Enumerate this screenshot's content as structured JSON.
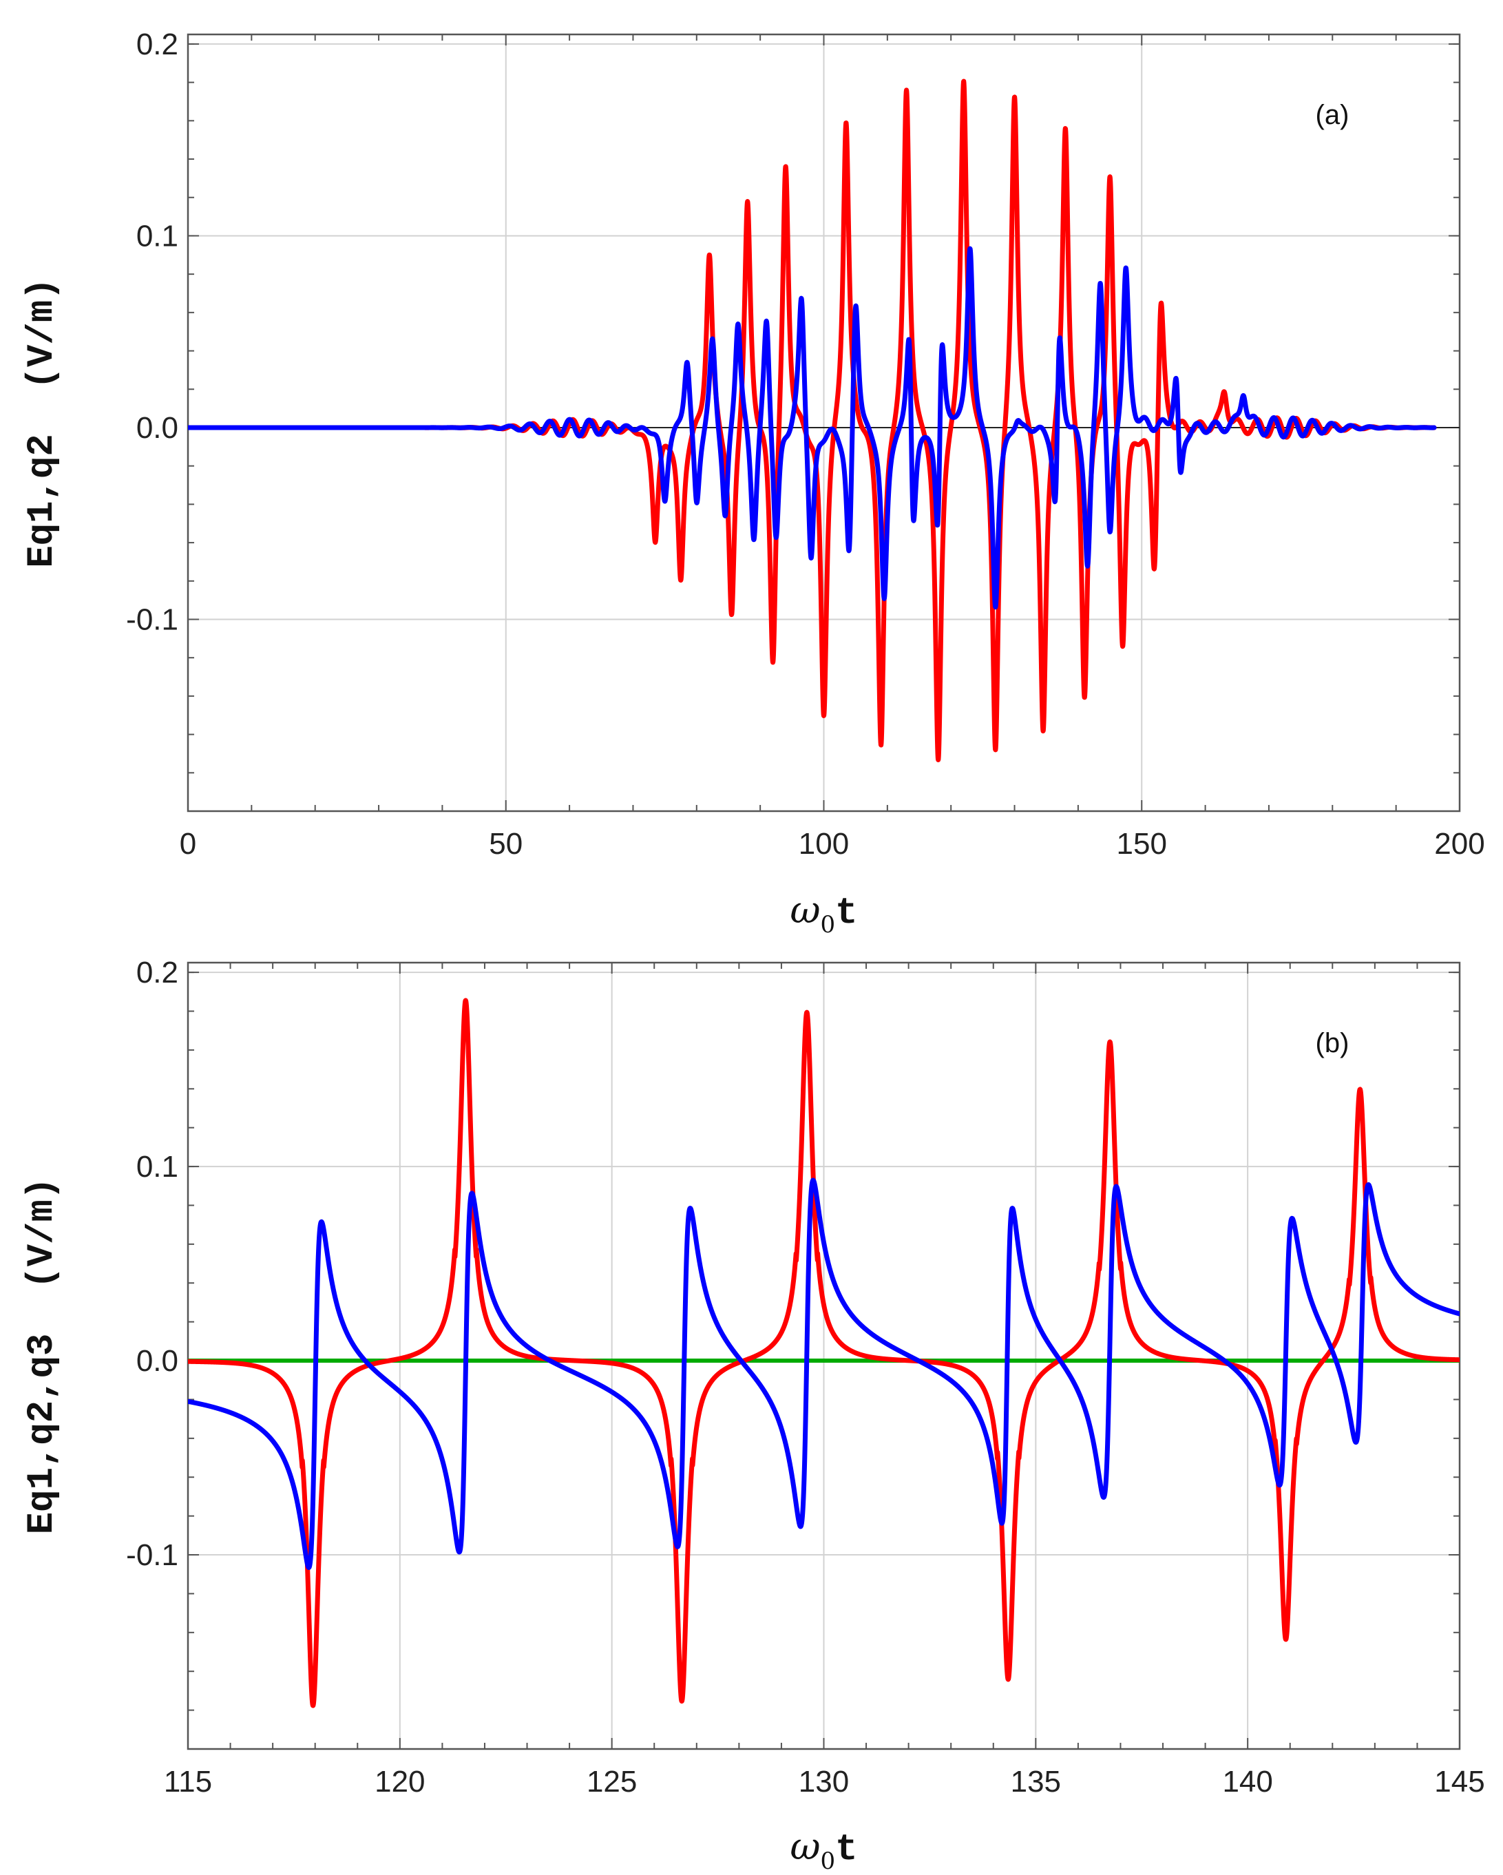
{
  "figure": {
    "colors": {
      "red": "#ff0000",
      "blue": "#0000ff",
      "green": "#00aa00",
      "grid": "#d2d2d2",
      "frame": "#555555"
    }
  },
  "chart_data": [
    {
      "type": "line",
      "panel_label": "(a)",
      "title": "",
      "xlabel": {
        "prefix": "ω",
        "sub": "0",
        "suffix": "t"
      },
      "ylabel": "Eq1,q2  (V/m)",
      "xlim": [
        0,
        200
      ],
      "ylim": [
        -0.2,
        0.205
      ],
      "xticks": [
        0,
        50,
        100,
        150,
        200
      ],
      "xtick_labels": [
        "0",
        "50",
        "100",
        "150",
        "200"
      ],
      "yticks": [
        -0.1,
        0.0,
        0.1,
        0.2
      ],
      "ytick_labels": [
        "-0.1",
        "0.0",
        "0.1",
        "0.2"
      ],
      "grid": true,
      "zero_line": true,
      "signal_span": [
        0,
        196
      ],
      "envelope": {
        "center": 120,
        "width": 33
      },
      "series": [
        {
          "color": "#ff0000",
          "peaks": [
            [
              82.0,
              0.093
            ],
            [
              88.0,
              0.121
            ],
            [
              94.0,
              0.144
            ],
            [
              103.5,
              0.165
            ],
            [
              113.0,
              0.18
            ],
            [
              122.0,
              0.185
            ],
            [
              130.0,
              0.18
            ],
            [
              138.0,
              0.164
            ],
            [
              145.0,
              0.14
            ],
            [
              153.0,
              0.085
            ],
            [
              163.0,
              0.02
            ]
          ],
          "troughs": [
            [
              73.5,
              -0.058
            ],
            [
              77.5,
              -0.081
            ],
            [
              85.5,
              -0.107
            ],
            [
              92.0,
              -0.131
            ],
            [
              100.0,
              -0.153
            ],
            [
              109.0,
              -0.169
            ],
            [
              118.0,
              -0.178
            ],
            [
              127.0,
              -0.175
            ],
            [
              134.5,
              -0.165
            ],
            [
              141.0,
              -0.145
            ],
            [
              147.0,
              -0.12
            ],
            [
              152.0,
              -0.09
            ]
          ]
        },
        {
          "color": "#0000ff",
          "peaks": [
            [
              78.5,
              0.041
            ],
            [
              82.5,
              0.049
            ],
            [
              86.5,
              0.062
            ],
            [
              91.0,
              0.066
            ],
            [
              96.5,
              0.077
            ],
            [
              105.0,
              0.085
            ],
            [
              113.5,
              0.093
            ],
            [
              118.5,
              0.088
            ],
            [
              123.0,
              0.095
            ],
            [
              130.5,
              0.093
            ],
            [
              137.0,
              0.085
            ],
            [
              143.5,
              0.09
            ],
            [
              147.5,
              0.083
            ],
            [
              150.5,
              0.062
            ],
            [
              155.5,
              0.049
            ],
            [
              166.0,
              0.02
            ]
          ],
          "troughs": [
            [
              75.0,
              -0.038
            ],
            [
              80.0,
              -0.046
            ],
            [
              84.5,
              -0.054
            ],
            [
              89.0,
              -0.061
            ],
            [
              92.5,
              -0.065
            ],
            [
              98.0,
              -0.077
            ],
            [
              104.0,
              -0.084
            ],
            [
              109.5,
              -0.091
            ],
            [
              114.0,
              -0.092
            ],
            [
              118.0,
              -0.094
            ],
            [
              127.0,
              -0.095
            ],
            [
              130.5,
              -0.087
            ],
            [
              136.5,
              -0.08
            ],
            [
              141.5,
              -0.077
            ],
            [
              145.0,
              -0.07
            ],
            [
              150.5,
              -0.062
            ],
            [
              156.0,
              -0.05
            ]
          ]
        }
      ]
    },
    {
      "type": "line",
      "panel_label": "(b)",
      "title": "",
      "xlabel": {
        "prefix": "ω",
        "sub": "0",
        "suffix": "t"
      },
      "ylabel": "Eq1,q2,q3  (V/m)",
      "xlim": [
        115,
        145
      ],
      "ylim": [
        -0.2,
        0.205
      ],
      "xticks": [
        115,
        120,
        125,
        130,
        135,
        140,
        145
      ],
      "xtick_labels": [
        "115",
        "120",
        "125",
        "130",
        "135",
        "140",
        "145"
      ],
      "minor_xticks_per_major": 5,
      "yticks": [
        -0.1,
        0.0,
        0.1,
        0.2
      ],
      "ytick_labels": [
        "-0.1",
        "0.0",
        "0.1",
        "0.2"
      ],
      "grid": true,
      "series": [
        {
          "color": "#ff0000",
          "pulses": [
            [
              117.95,
              -0.178
            ],
            [
              121.55,
              0.186
            ],
            [
              126.65,
              -0.176
            ],
            [
              129.6,
              0.18
            ],
            [
              134.35,
              -0.165
            ],
            [
              136.75,
              0.165
            ],
            [
              140.9,
              -0.145
            ],
            [
              142.65,
              0.141
            ]
          ]
        },
        {
          "color": "#0000ff",
          "dispersive": [
            [
              117.85,
              -0.091,
              118.15,
              0.088
            ],
            [
              121.4,
              -0.091,
              121.7,
              0.095
            ],
            [
              126.55,
              -0.091,
              126.85,
              0.085
            ],
            [
              129.45,
              -0.087,
              129.75,
              0.093
            ],
            [
              134.2,
              -0.087,
              134.45,
              0.077
            ],
            [
              136.6,
              -0.077,
              136.9,
              0.085
            ],
            [
              140.75,
              -0.077,
              141.05,
              0.063
            ],
            [
              142.55,
              -0.062,
              142.85,
              0.073
            ]
          ]
        },
        {
          "color": "#00aa00",
          "constant": 0.0
        }
      ]
    }
  ]
}
